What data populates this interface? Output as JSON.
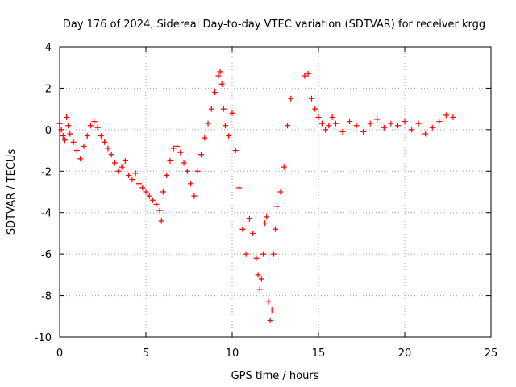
{
  "chart_data": {
    "type": "scatter",
    "title": "Day 176 of 2024, Sidereal Day-to-day VTEC variation (SDTVAR) for receiver krgg",
    "xlabel": "GPS time / hours",
    "ylabel": "SDTVAR / TECUs",
    "xlim": [
      0,
      25
    ],
    "ylim": [
      -10,
      4
    ],
    "xticks": [
      0,
      5,
      10,
      15,
      20,
      25
    ],
    "yticks": [
      -10,
      -8,
      -6,
      -4,
      -2,
      0,
      2,
      4
    ],
    "xtick_labels": [
      "0",
      "5",
      "10",
      "15",
      "20",
      "25"
    ],
    "ytick_labels": [
      "-10",
      "-8",
      "-6",
      "-4",
      "-2",
      "0",
      "2",
      "4"
    ],
    "grid": true,
    "marker": "plus",
    "color": "#ff0000",
    "series": [
      {
        "name": "SDTVAR krgg",
        "x": [
          0.0,
          0.1,
          0.2,
          0.3,
          0.4,
          0.5,
          0.6,
          0.8,
          1.0,
          1.2,
          1.4,
          1.6,
          1.8,
          2.0,
          2.2,
          2.4,
          2.6,
          2.8,
          3.0,
          3.2,
          3.4,
          3.6,
          3.8,
          4.0,
          4.2,
          4.4,
          4.6,
          4.8,
          5.0,
          5.2,
          5.4,
          5.6,
          5.8,
          5.9,
          6.0,
          6.2,
          6.4,
          6.6,
          6.8,
          7.0,
          7.2,
          7.4,
          7.6,
          7.8,
          8.0,
          8.2,
          8.4,
          8.6,
          8.8,
          9.0,
          9.2,
          9.3,
          9.4,
          9.5,
          9.6,
          9.8,
          10.0,
          10.2,
          10.4,
          10.6,
          10.8,
          11.0,
          11.2,
          11.4,
          11.5,
          11.6,
          11.7,
          11.8,
          11.9,
          12.0,
          12.1,
          12.2,
          12.3,
          12.4,
          12.5,
          12.6,
          12.8,
          13.0,
          13.2,
          13.4,
          14.2,
          14.4,
          14.6,
          14.8,
          15.0,
          15.2,
          15.4,
          15.6,
          15.8,
          16.0,
          16.4,
          16.8,
          17.2,
          17.6,
          18.0,
          18.4,
          18.8,
          19.2,
          19.6,
          20.0,
          20.4,
          20.8,
          21.2,
          21.6,
          22.0,
          22.4,
          22.8
        ],
        "y": [
          0.3,
          0.0,
          -0.3,
          -0.5,
          0.6,
          0.2,
          -0.2,
          -0.6,
          -1.0,
          -1.4,
          -0.8,
          -0.3,
          0.2,
          0.4,
          0.1,
          -0.3,
          -0.6,
          -0.9,
          -1.2,
          -1.6,
          -2.0,
          -1.8,
          -1.5,
          -2.2,
          -2.4,
          -2.1,
          -2.6,
          -2.8,
          -3.0,
          -3.2,
          -3.4,
          -3.6,
          -3.9,
          -4.4,
          -3.0,
          -2.2,
          -1.5,
          -0.9,
          -0.8,
          -1.1,
          -1.6,
          -2.0,
          -2.6,
          -3.2,
          -2.0,
          -1.2,
          -0.4,
          0.3,
          1.0,
          1.8,
          2.6,
          2.8,
          2.2,
          1.0,
          0.2,
          -0.3,
          0.8,
          -1.0,
          -2.8,
          -4.8,
          -6.0,
          -4.3,
          -5.0,
          -6.2,
          -7.0,
          -7.7,
          -7.2,
          -6.0,
          -4.5,
          -4.2,
          -8.3,
          -9.2,
          -8.7,
          -6.0,
          -4.8,
          -3.7,
          -3.0,
          -1.8,
          0.2,
          1.5,
          2.6,
          2.7,
          1.5,
          1.0,
          0.6,
          0.3,
          0.0,
          0.2,
          0.6,
          0.3,
          -0.1,
          0.4,
          0.2,
          -0.1,
          0.3,
          0.5,
          0.1,
          0.3,
          0.2,
          0.4,
          0.0,
          0.3,
          -0.2,
          0.1,
          0.4,
          0.7,
          0.6
        ]
      }
    ]
  }
}
